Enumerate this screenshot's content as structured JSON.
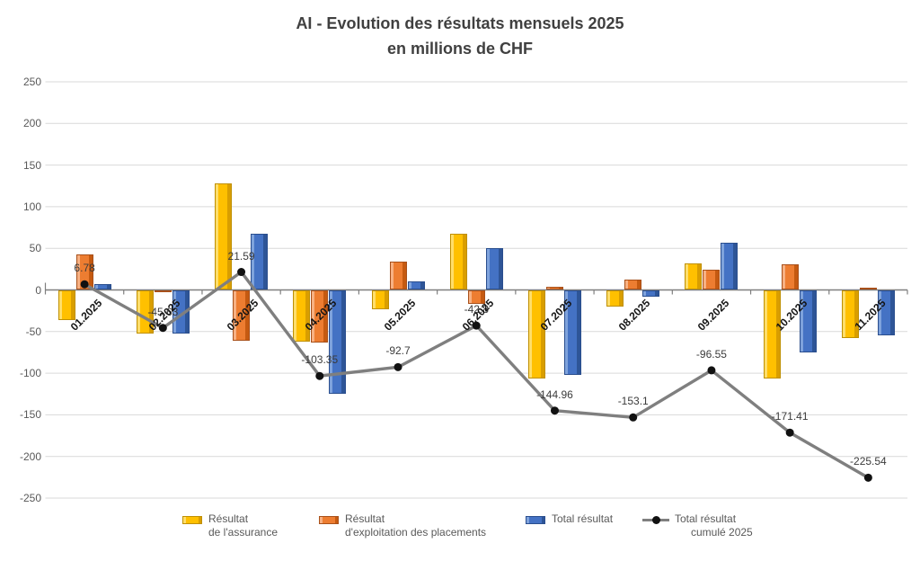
{
  "title": {
    "line1": "AI - Evolution des résultats mensuels 2025",
    "line2": "en millions de CHF"
  },
  "y_axis": {
    "tick_labels": [
      "250",
      "200",
      "150",
      "100",
      "50",
      "0",
      "-50",
      "-100",
      "-150",
      "-200",
      "-250"
    ],
    "min": -250,
    "max": 250,
    "step": 50
  },
  "chart_data": {
    "type": "combo",
    "title": "AI - Evolution des résultats mensuels 2025 en millions de CHF",
    "categories": [
      "01.2025",
      "02.2025",
      "03.2025",
      "04.2025",
      "05.2025",
      "06.2025",
      "07.2025",
      "08.2025",
      "09.2025",
      "10.2025",
      "11.2025"
    ],
    "grid": true,
    "ylim": [
      -250,
      250
    ],
    "ytick_step": 50,
    "legend_position": "bottom",
    "series": [
      {
        "name": "Résultat de l'assurance",
        "type": "bar",
        "color": "#FFC000",
        "color_light": "#FFDE6B",
        "color_dark": "#D99E00",
        "color_border": "#BF8F00",
        "values": [
          -36.02,
          -52.0,
          128.22,
          -62.0,
          -23.0,
          67.0,
          -105.9,
          -20.5,
          32.0,
          -106.0,
          -57.3
        ]
      },
      {
        "name": "Résultat d'exploitation des placements",
        "type": "bar",
        "color": "#ED7D31",
        "color_light": "#F7B183",
        "color_dark": "#C55A11",
        "color_border": "#A8501A",
        "values": [
          42.8,
          -0.41,
          -61.0,
          -62.94,
          33.65,
          -17.1,
          3.74,
          12.36,
          24.55,
          31.14,
          3.17
        ]
      },
      {
        "name": "Total résultat",
        "type": "bar",
        "color": "#4472C4",
        "color_light": "#7FA3DC",
        "color_dark": "#2E5597",
        "color_border": "#2A4E8E",
        "values": [
          6.78,
          -52.41,
          67.22,
          -124.94,
          10.65,
          49.9,
          -102.16,
          -8.14,
          56.55,
          -74.86,
          -54.13
        ]
      },
      {
        "name": "Total résultat cumulé 2025",
        "type": "line",
        "color": "#7F7F7F",
        "marker_color": "#111111",
        "values": [
          6.78,
          -45.63,
          21.59,
          -103.35,
          -92.7,
          -42.8,
          -144.96,
          -153.1,
          -96.55,
          -171.41,
          -225.54
        ],
        "data_labels": [
          "6.78",
          "-45.63",
          "21.59",
          "-103.35",
          "-92.7",
          "-42.8",
          "-144.96",
          "-153.1",
          "-96.55",
          "-171.41",
          "-225.54"
        ]
      }
    ],
    "colors": {
      "gridline": "#D9D9D9",
      "axis": "#7F7F7F",
      "title_text": "#404040",
      "axis_text": "#595959",
      "category_text": "#141414"
    }
  },
  "legend": {
    "items": [
      {
        "line1": "Résultat",
        "line2": "de l'assurance"
      },
      {
        "line1": "Résultat",
        "line2": "d'exploitation des placements"
      },
      {
        "line1": "Total résultat",
        "line2": ""
      },
      {
        "line1": "Total résultat",
        "line2": "cumulé 2025"
      }
    ]
  }
}
